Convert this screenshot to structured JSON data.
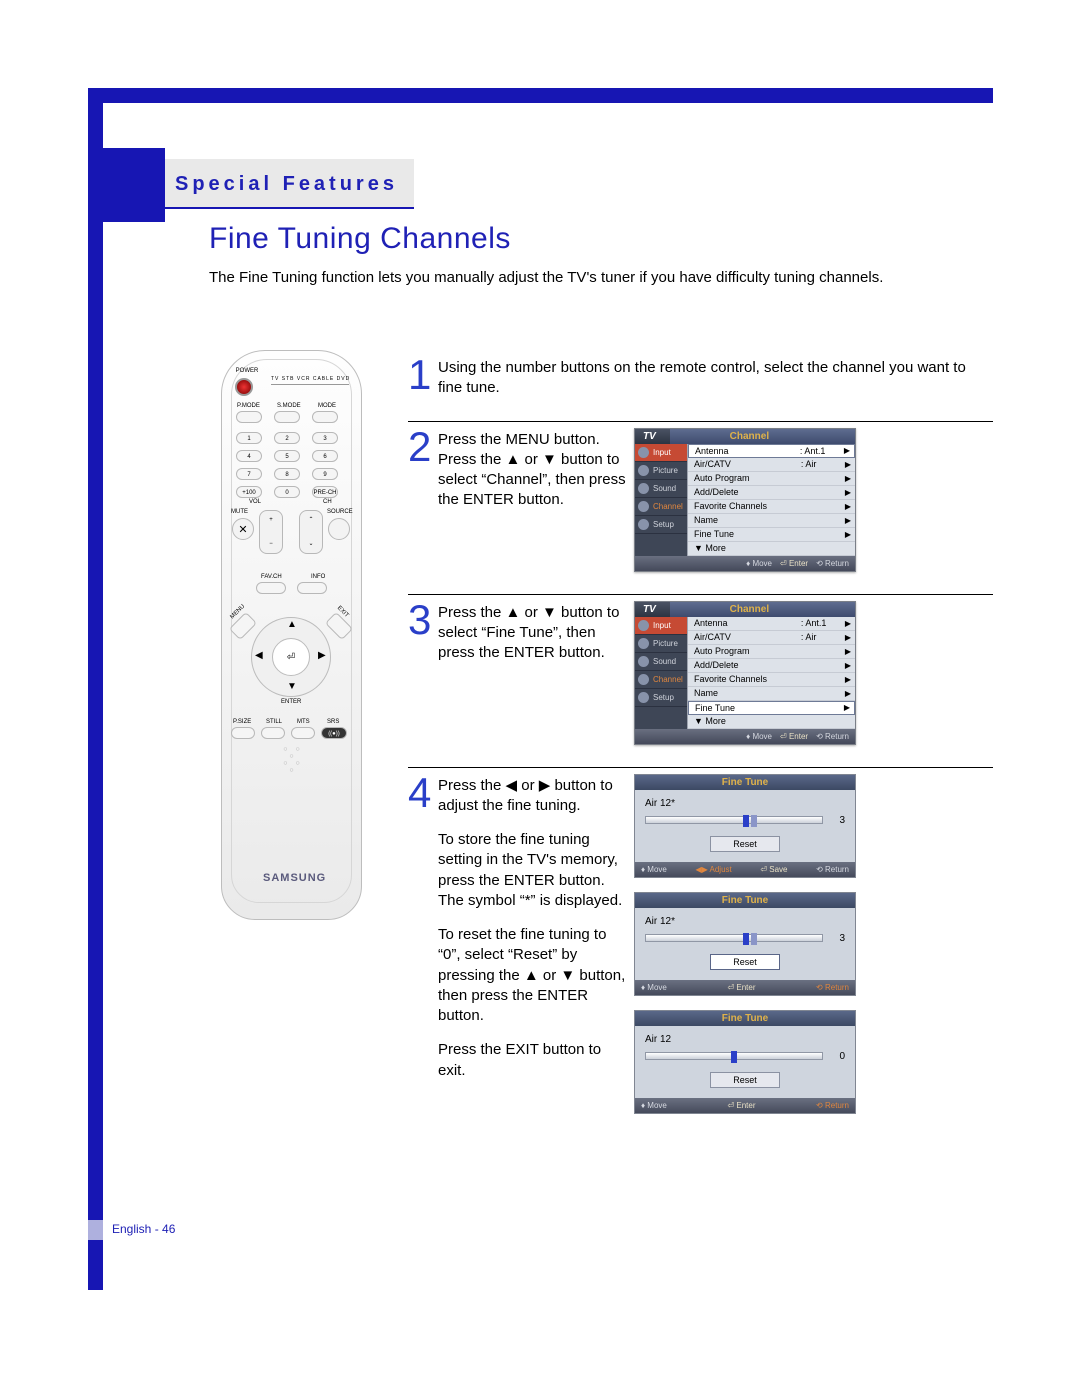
{
  "section_title": "Special Features",
  "page_title": "Fine Tuning Channels",
  "intro": "The Fine Tuning function lets you manually adjust the TV's tuner if you have difficulty tuning channels.",
  "remote": {
    "power_label": "POWER",
    "device_row": "TV  STB  VCR  CABLE  DVD",
    "row1": [
      "P.MODE",
      "S.MODE",
      "MODE"
    ],
    "numpad": [
      [
        "1",
        "2",
        "3"
      ],
      [
        "4",
        "5",
        "6"
      ],
      [
        "7",
        "8",
        "9"
      ],
      [
        "+100",
        "0",
        "PRE-CH"
      ]
    ],
    "vol_label": "VOL",
    "ch_label": "CH",
    "mute": "MUTE",
    "source": "SOURCE",
    "fav": "FAV.CH",
    "info": "INFO",
    "menu": "MENU",
    "exit": "EXIT",
    "enter": "ENTER",
    "bottom_row": [
      "P.SIZE",
      "STILL",
      "MTS",
      "SRS"
    ],
    "brand": "SAMSUNG"
  },
  "steps": {
    "s1": "Using the number buttons on the remote control, select the channel you want to fine tune.",
    "s2": "Press the MENU button.\nPress the ▲ or ▼ button to select “Channel”, then press the ENTER button.",
    "s3": "Press the ▲ or ▼ button to select “Fine Tune”, then press the ENTER button.",
    "s4a": "Press the ◀ or ▶ button to adjust the fine tuning.",
    "s4b": "To store the fine tuning setting in the TV's memory, press the ENTER button. The symbol “*” is displayed.",
    "s4c": "To reset the fine tuning to “0”, select “Reset” by pressing the ▲ or ▼ button, then press the ENTER button.",
    "s4d": "Press the EXIT button to exit."
  },
  "osd": {
    "tv": "TV",
    "heading": "Channel",
    "tabs": [
      "Input",
      "Picture",
      "Sound",
      "Channel",
      "Setup"
    ],
    "rows_a": [
      {
        "lbl": "Antenna",
        "val": ": Ant.1"
      },
      {
        "lbl": "Air/CATV",
        "val": ": Air"
      },
      {
        "lbl": "Auto Program",
        "val": ""
      },
      {
        "lbl": "Add/Delete",
        "val": ""
      },
      {
        "lbl": "Favorite Channels",
        "val": ""
      },
      {
        "lbl": "Name",
        "val": ""
      },
      {
        "lbl": "Fine Tune",
        "val": ""
      },
      {
        "lbl": "▼ More",
        "val": "",
        "noarrow": true
      }
    ],
    "rows_b_highlight_index": 6,
    "footer_move": "Move",
    "footer_enter": "Enter",
    "footer_return": "Return"
  },
  "finetune": {
    "title": "Fine Tune",
    "ch_star": "Air 12*",
    "ch_plain": "Air 12",
    "val_3": "3",
    "val_0": "0",
    "reset": "Reset",
    "footer": {
      "move": "Move",
      "adjust": "Adjust",
      "save": "Save",
      "enter": "Enter",
      "return": "Return"
    }
  },
  "page_footer": "English - 46"
}
